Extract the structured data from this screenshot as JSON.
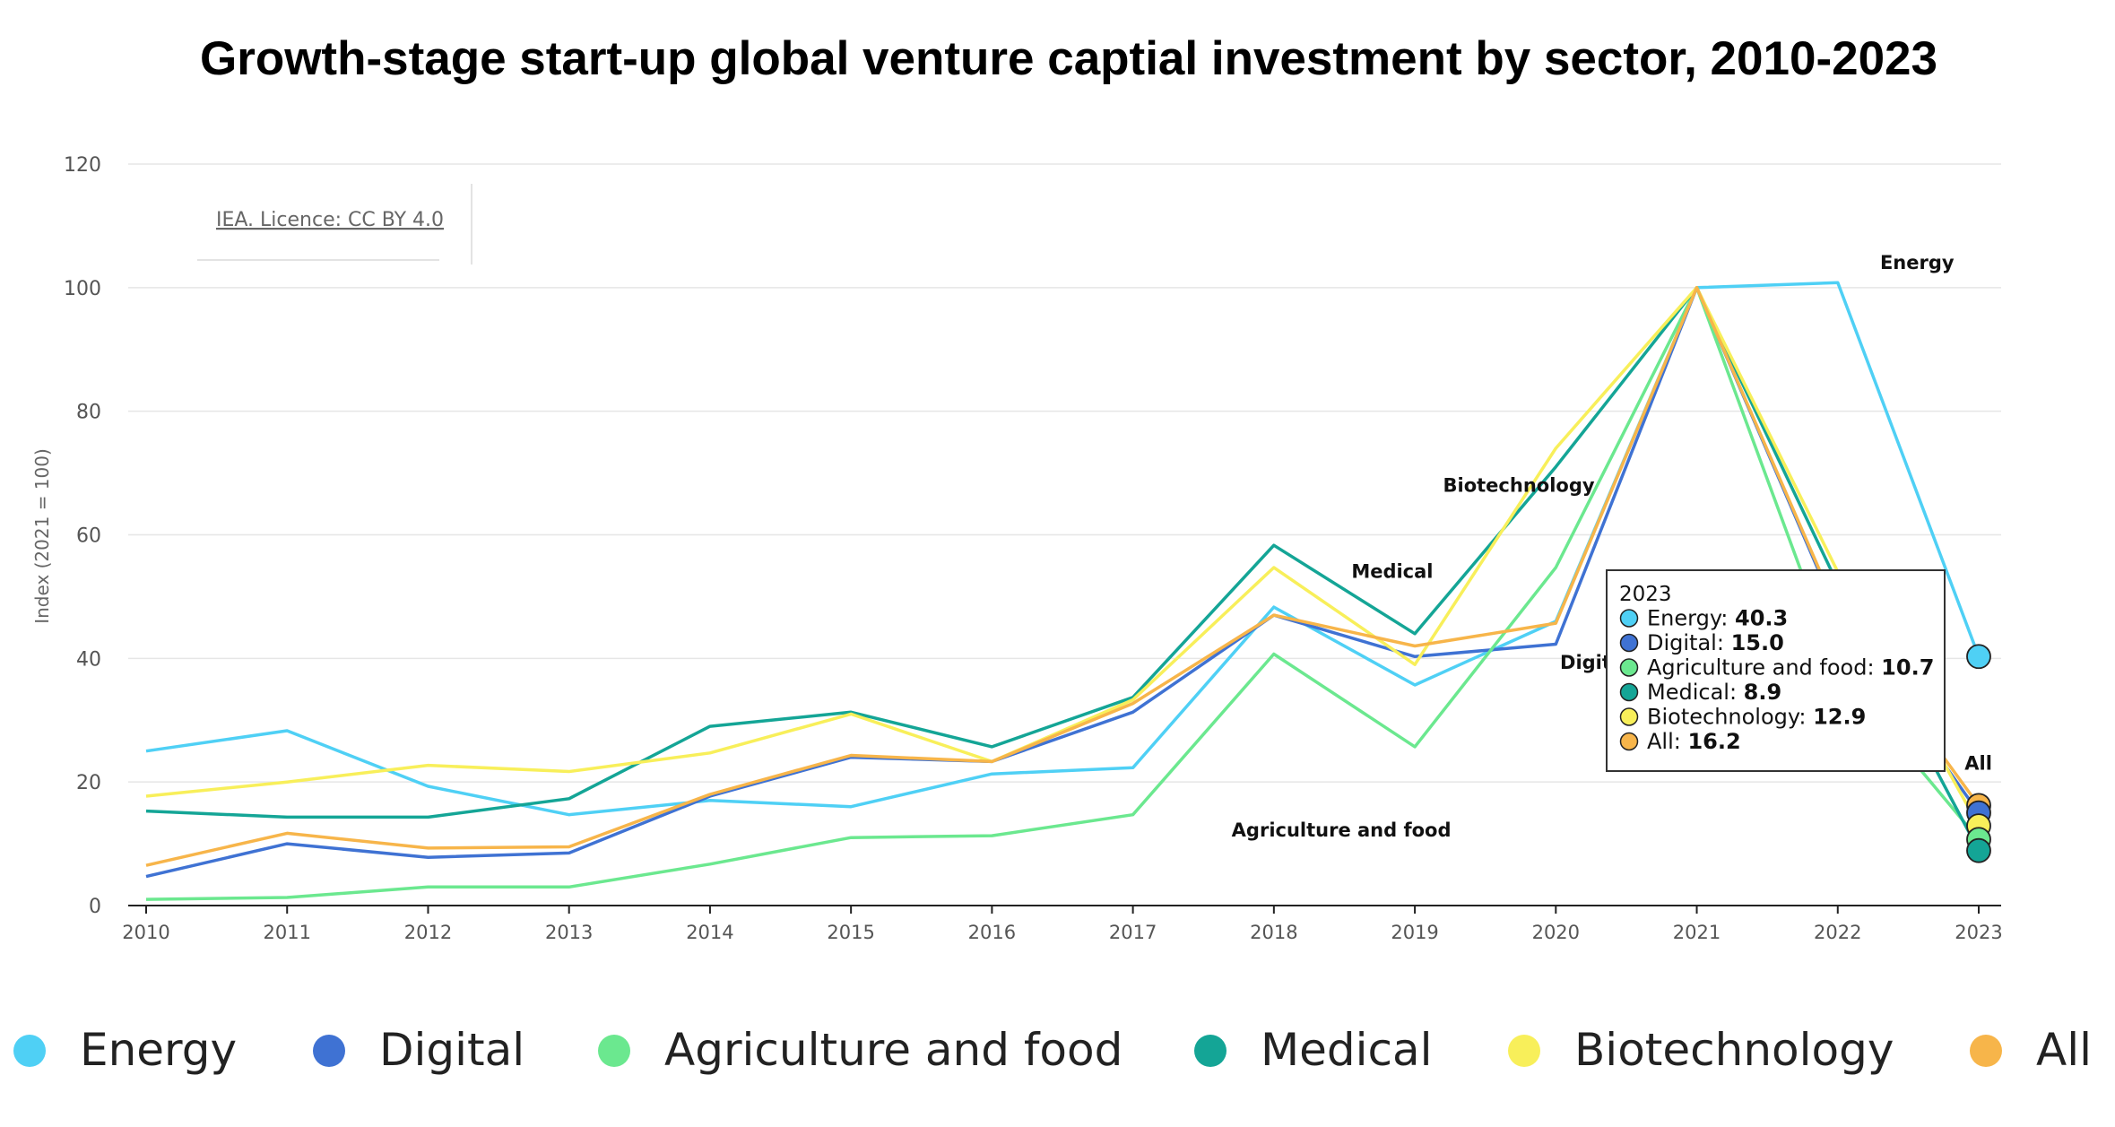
{
  "chart_data": {
    "type": "line",
    "title": "Growth-stage start-up global venture captial investment by sector, 2010-2023",
    "credit": "IEA. Licence: CC BY 4.0",
    "ylabel": "Index (2021 = 100)",
    "xlabel": "",
    "ylim": [
      0,
      120
    ],
    "yticks": [
      0,
      20,
      40,
      60,
      80,
      100,
      120
    ],
    "x": [
      2010,
      2011,
      2012,
      2013,
      2014,
      2015,
      2016,
      2017,
      2018,
      2019,
      2020,
      2021,
      2022,
      2023
    ],
    "grid": true,
    "legend_position": "bottom",
    "series": [
      {
        "name": "Energy",
        "color": "#4fd0f5",
        "values": [
          25.0,
          28.3,
          19.3,
          14.7,
          17.0,
          16.0,
          21.3,
          22.3,
          48.3,
          35.7,
          46.0,
          100,
          100.8,
          40.3
        ]
      },
      {
        "name": "Digital",
        "color": "#3f72d3",
        "values": [
          4.7,
          10.0,
          7.8,
          8.5,
          17.7,
          24.0,
          23.3,
          31.3,
          47.0,
          40.3,
          42.3,
          100,
          47.0,
          15.0
        ]
      },
      {
        "name": "Agriculture and food",
        "color": "#6be88f",
        "values": [
          1.0,
          1.3,
          3.0,
          3.0,
          6.7,
          11.0,
          11.3,
          14.7,
          40.7,
          25.7,
          54.7,
          100,
          38.0,
          10.7
        ]
      },
      {
        "name": "Medical",
        "color": "#14a596",
        "values": [
          15.3,
          14.3,
          14.3,
          17.3,
          29.0,
          31.3,
          25.7,
          33.7,
          58.3,
          44.0,
          71.0,
          100,
          52.0,
          8.9
        ]
      },
      {
        "name": "Biotechnology",
        "color": "#f8ef5a",
        "values": [
          17.7,
          20.0,
          22.7,
          21.7,
          24.7,
          31.0,
          23.3,
          33.3,
          54.7,
          39.0,
          74.0,
          100,
          54.0,
          12.9
        ]
      },
      {
        "name": "All",
        "color": "#f7b54a",
        "values": [
          6.5,
          11.7,
          9.3,
          9.5,
          18.0,
          24.3,
          23.3,
          32.7,
          47.0,
          42.0,
          45.7,
          100,
          47.5,
          16.2
        ]
      }
    ],
    "annotations": [
      {
        "text": "Energy",
        "x": 2022.3,
        "y": 103
      },
      {
        "text": "Biotechnology",
        "x": 2019.2,
        "y": 67
      },
      {
        "text": "Medical",
        "x": 2018.55,
        "y": 53
      },
      {
        "text": "Agriculture and food",
        "x": 2017.7,
        "y": 11.2
      },
      {
        "text": "All",
        "x": 2022.9,
        "y": 22
      },
      {
        "text": "Digit",
        "x": 2020.03,
        "y": 38.3
      }
    ],
    "tooltip": {
      "header": "2023",
      "rows": [
        {
          "label": "Energy",
          "value": "40.3"
        },
        {
          "label": "Digital",
          "value": "15.0"
        },
        {
          "label": "Agriculture and food",
          "value": "10.7"
        },
        {
          "label": "Medical",
          "value": "8.9"
        },
        {
          "label": "Biotechnology",
          "value": "12.9"
        },
        {
          "label": "All",
          "value": "16.2"
        }
      ]
    }
  }
}
